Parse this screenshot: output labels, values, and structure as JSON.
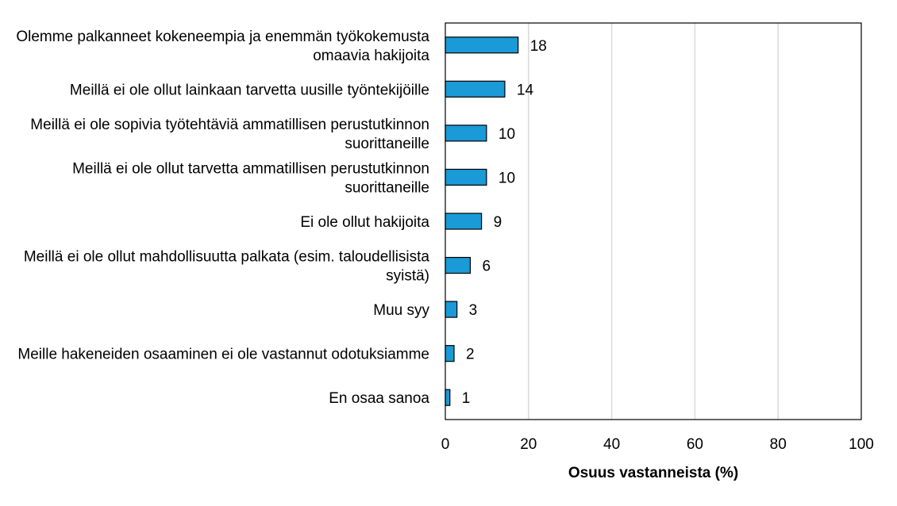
{
  "chart_data": {
    "type": "bar",
    "orientation": "horizontal",
    "categories": [
      [
        "Olemme palkanneet kokeneempia ja enemmän työkokemusta",
        "omaavia hakijoita"
      ],
      [
        "Meillä ei ole ollut lainkaan tarvetta uusille työntekijöille"
      ],
      [
        "Meillä ei ole sopivia työtehtäviä ammatillisen perustutkinnon",
        "suorittaneille"
      ],
      [
        "Meillä ei ole ollut tarvetta ammatillisen perustutkinnon",
        "suorittaneille"
      ],
      [
        "Ei ole ollut hakijoita"
      ],
      [
        "Meillä ei ole ollut mahdollisuutta palkata (esim. taloudellisista",
        "syistä)"
      ],
      [
        "Muu syy"
      ],
      [
        "Meille hakeneiden osaaminen ei ole vastannut odotuksiamme"
      ],
      [
        "En osaa sanoa"
      ]
    ],
    "values": [
      17.5,
      14.3,
      9.9,
      9.9,
      8.7,
      6.0,
      2.8,
      2.1,
      1.1
    ],
    "value_labels": [
      "18",
      "14",
      "10",
      "10",
      "9",
      "6",
      "3",
      "2",
      "1"
    ],
    "xlim": [
      0,
      100
    ],
    "xticks": [
      0,
      20,
      40,
      60,
      80,
      100
    ],
    "xtick_labels": [
      "0",
      "20",
      "40",
      "60",
      "80",
      "100"
    ],
    "xlabel": "Osuus vastanneista (%)",
    "ylabel": "",
    "title": "",
    "grid": "vertical",
    "colors": {
      "bar_fill": "#1a9ad6",
      "bar_stroke": "#000000",
      "grid": "#d9d9d9",
      "frame": "#000000"
    }
  }
}
